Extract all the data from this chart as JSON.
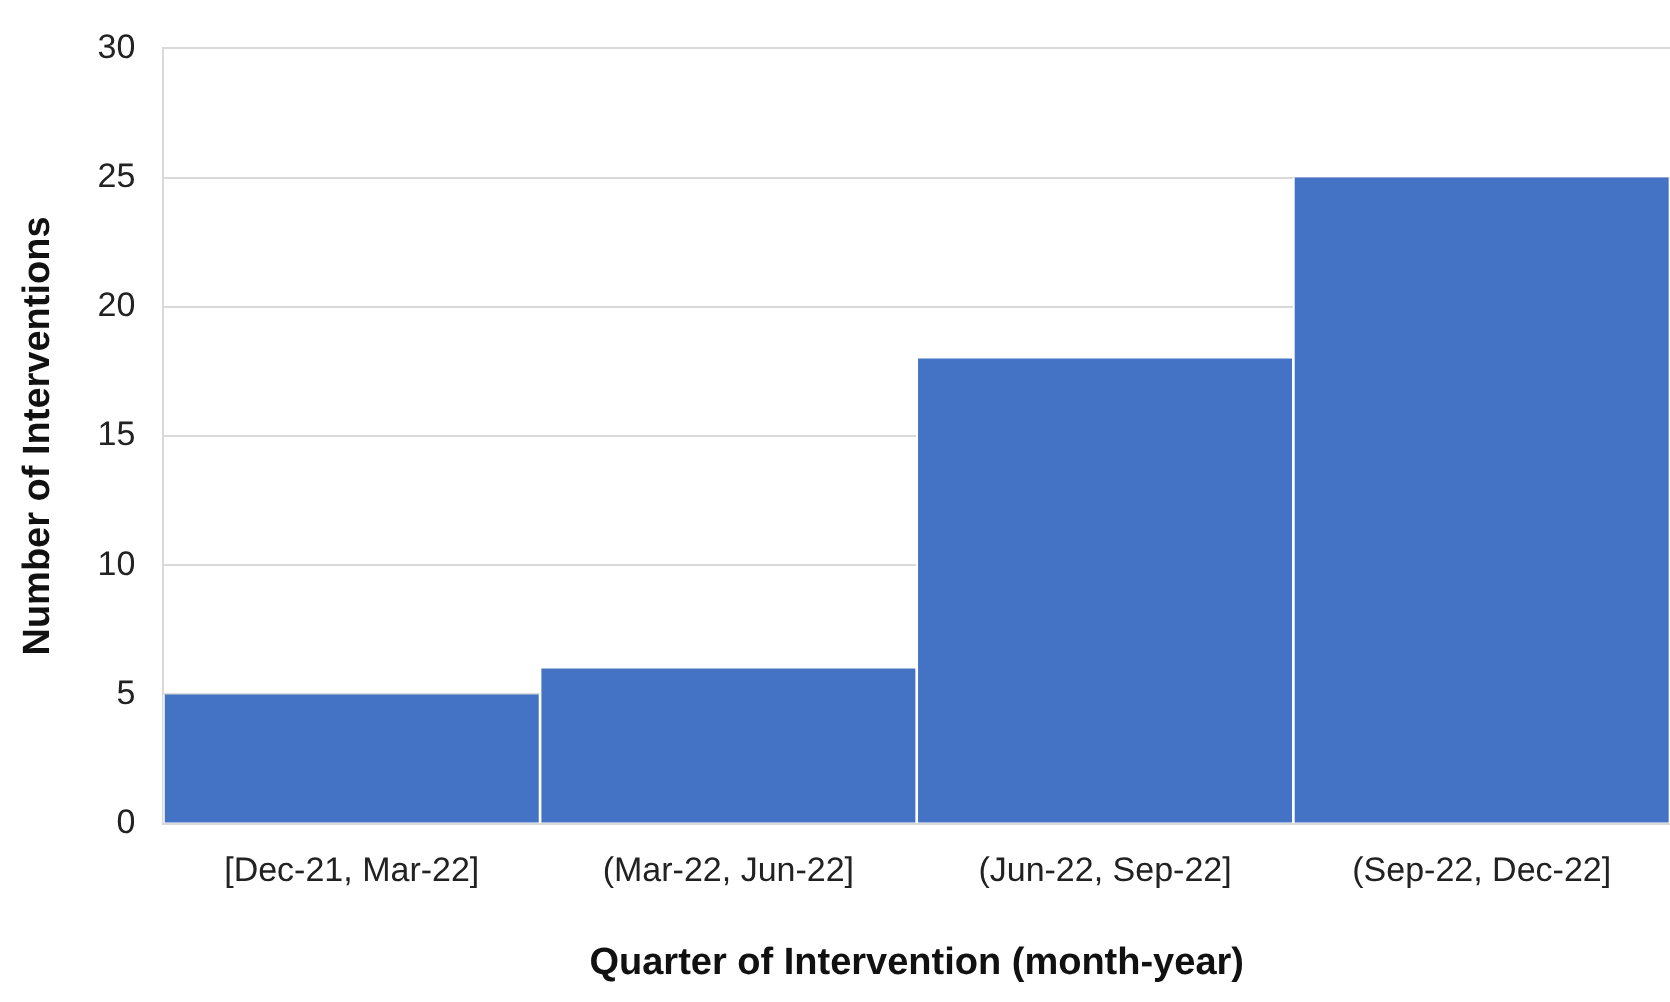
{
  "chart_data": {
    "type": "bar",
    "xlabel": "Quarter of Intervention (month-year)",
    "ylabel": "Number of Interventions",
    "categories": [
      "[Dec-21, Mar-22]",
      "(Mar-22, Jun-22]",
      "(Jun-22, Sep-22]",
      "(Sep-22, Dec-22]"
    ],
    "values": [
      5,
      6,
      18,
      25
    ],
    "color": "#4472c4",
    "ylim": [
      0,
      30
    ],
    "yticks": [
      0,
      5,
      10,
      15,
      20,
      25,
      30
    ],
    "grid": "y"
  }
}
